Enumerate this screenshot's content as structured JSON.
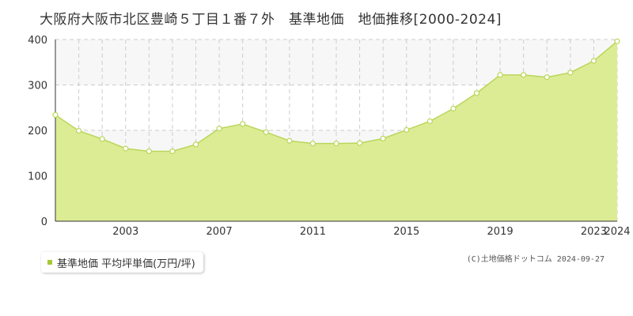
{
  "title": "大阪府大阪市北区豊崎５丁目１番７外　基準地価　地価推移[2000-2024]",
  "legend": {
    "label": "基準地価 平均坪単価(万円/坪)"
  },
  "credit": "(C)土地価格ドットコム 2024-09-27",
  "colors": {
    "fill": "#dcec94",
    "line": "#b9d65a",
    "point_stroke": "#b9d65a",
    "point_fill": "#ffffff",
    "band": "#f7f7f7",
    "grid": "#cccccc",
    "legend_marker": "#a5c934"
  },
  "chart_data": {
    "type": "area",
    "x": [
      2000,
      2001,
      2002,
      2003,
      2004,
      2005,
      2006,
      2007,
      2008,
      2009,
      2010,
      2011,
      2012,
      2013,
      2014,
      2015,
      2016,
      2017,
      2018,
      2019,
      2020,
      2021,
      2022,
      2023,
      2024
    ],
    "series": [
      {
        "name": "基準地価 平均坪単価(万円/坪)",
        "values": [
          234,
          199,
          181,
          160,
          154,
          154,
          169,
          204,
          214,
          196,
          177,
          171,
          171,
          172,
          182,
          201,
          220,
          248,
          282,
          322,
          322,
          317,
          327,
          353,
          396
        ]
      }
    ],
    "ylim": [
      0,
      400
    ],
    "yticks": [
      0,
      100,
      200,
      300,
      400
    ],
    "xtick_labels": [
      "2003",
      "2007",
      "2011",
      "2015",
      "2019",
      "2023",
      "2024"
    ],
    "xlim": [
      2000,
      2024
    ],
    "grid": true
  }
}
